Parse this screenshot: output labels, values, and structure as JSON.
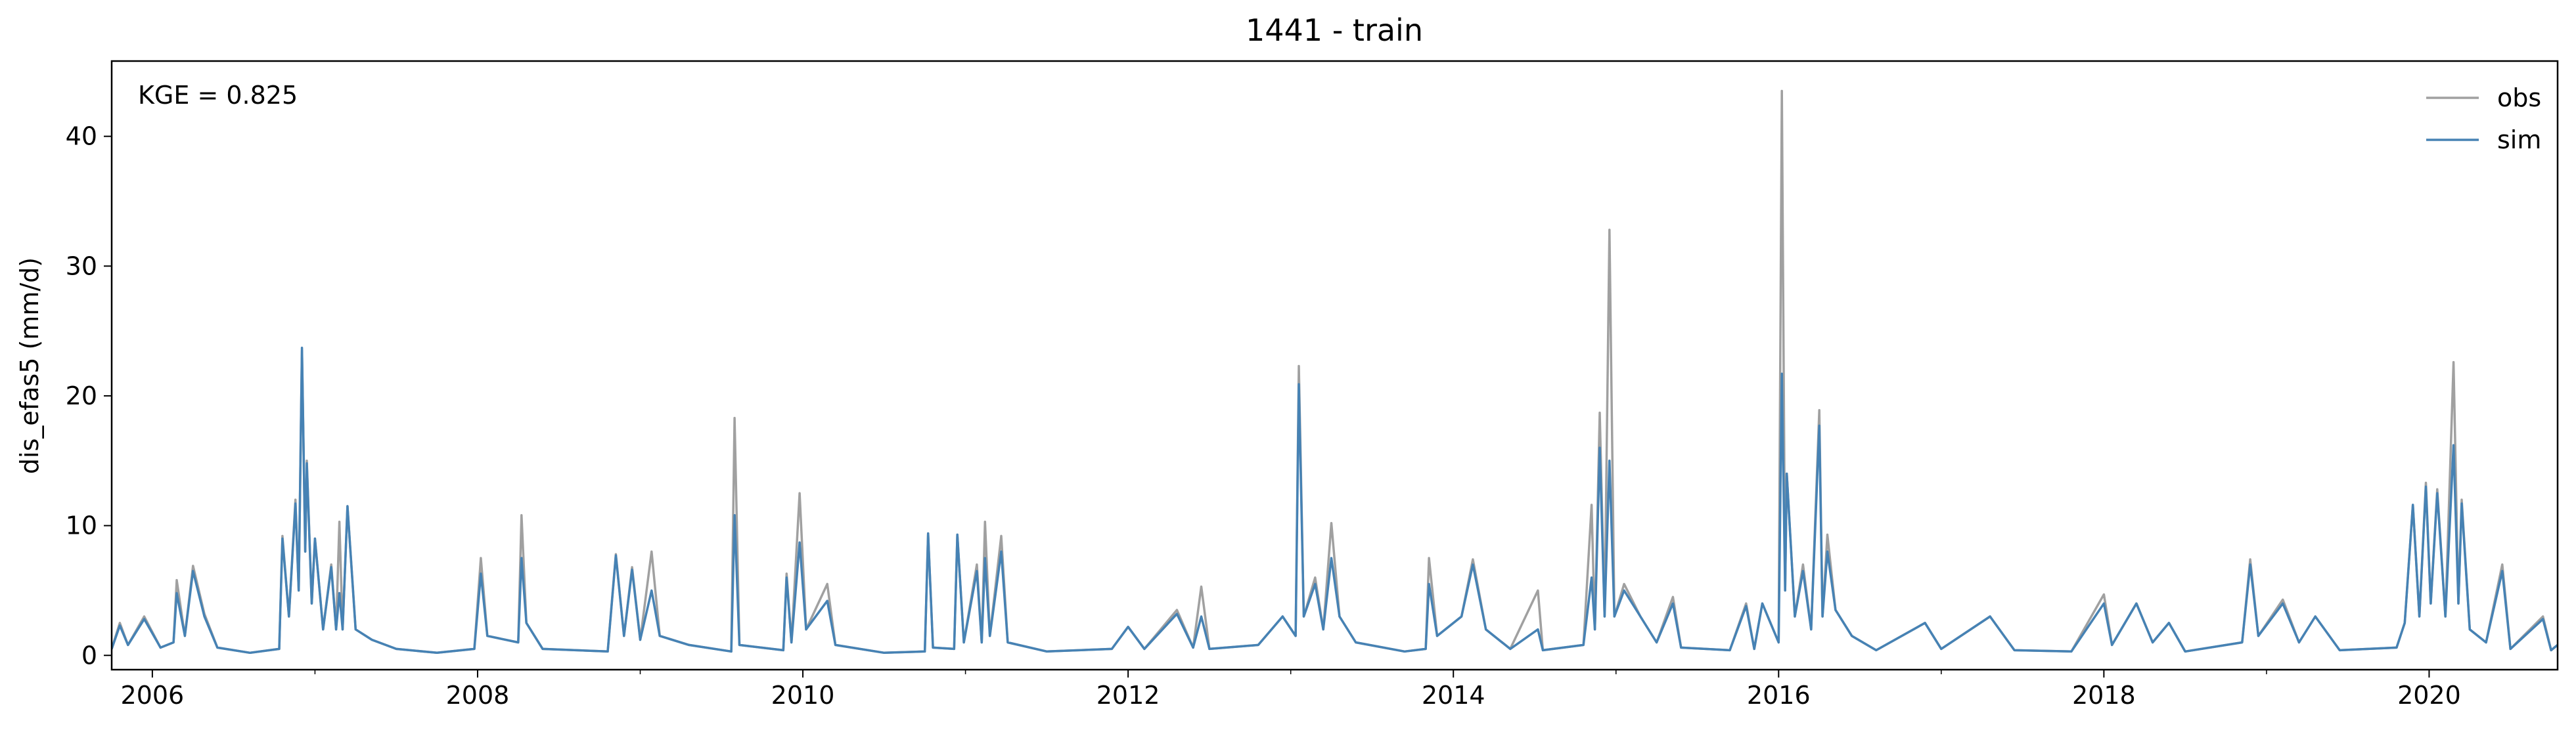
{
  "chart_data": {
    "type": "line",
    "title": "1441 - train",
    "ylabel": "dis_efas5 (mm/d)",
    "annotation": "KGE = 0.825",
    "legend": "upper right",
    "xlim": [
      2005.75,
      2020.79
    ],
    "xticks": [
      2006,
      2008,
      2010,
      2012,
      2014,
      2016,
      2018,
      2020
    ],
    "xminorticks": [
      2007,
      2009,
      2011,
      2013,
      2015,
      2017,
      2019
    ],
    "ylim": [
      -1.1,
      45.8
    ],
    "yticks": [
      0,
      10,
      20,
      30,
      40
    ],
    "x": [
      2005.75,
      2005.8,
      2005.85,
      2005.95,
      2006.05,
      2006.13,
      2006.15,
      2006.2,
      2006.25,
      2006.32,
      2006.4,
      2006.6,
      2006.78,
      2006.8,
      2006.84,
      2006.88,
      2006.9,
      2006.92,
      2006.94,
      2006.95,
      2006.98,
      2007.0,
      2007.05,
      2007.1,
      2007.13,
      2007.15,
      2007.17,
      2007.2,
      2007.25,
      2007.35,
      2007.5,
      2007.75,
      2007.98,
      2008.02,
      2008.06,
      2008.25,
      2008.27,
      2008.3,
      2008.4,
      2008.8,
      2008.85,
      2008.9,
      2008.95,
      2009.0,
      2009.07,
      2009.12,
      2009.3,
      2009.56,
      2009.58,
      2009.61,
      2009.88,
      2009.9,
      2009.93,
      2009.98,
      2010.02,
      2010.15,
      2010.2,
      2010.5,
      2010.75,
      2010.77,
      2010.8,
      2010.93,
      2010.95,
      2010.99,
      2011.07,
      2011.1,
      2011.12,
      2011.15,
      2011.22,
      2011.26,
      2011.5,
      2011.9,
      2012.0,
      2012.1,
      2012.3,
      2012.4,
      2012.45,
      2012.5,
      2012.8,
      2012.95,
      2013.03,
      2013.05,
      2013.08,
      2013.15,
      2013.2,
      2013.25,
      2013.3,
      2013.4,
      2013.7,
      2013.83,
      2013.85,
      2013.9,
      2014.05,
      2014.12,
      2014.2,
      2014.35,
      2014.52,
      2014.55,
      2014.8,
      2014.85,
      2014.87,
      2014.9,
      2014.93,
      2014.96,
      2014.99,
      2015.05,
      2015.15,
      2015.25,
      2015.35,
      2015.4,
      2015.7,
      2015.8,
      2015.85,
      2015.9,
      2016.0,
      2016.02,
      2016.04,
      2016.05,
      2016.1,
      2016.15,
      2016.2,
      2016.25,
      2016.27,
      2016.3,
      2016.35,
      2016.45,
      2016.6,
      2016.9,
      2017.0,
      2017.3,
      2017.45,
      2017.8,
      2018.0,
      2018.05,
      2018.2,
      2018.3,
      2018.4,
      2018.5,
      2018.85,
      2018.9,
      2018.95,
      2019.1,
      2019.2,
      2019.3,
      2019.45,
      2019.8,
      2019.85,
      2019.9,
      2019.94,
      2019.98,
      2020.01,
      2020.05,
      2020.1,
      2020.15,
      2020.18,
      2020.2,
      2020.25,
      2020.35,
      2020.45,
      2020.5,
      2020.7,
      2020.75,
      2020.79
    ],
    "series": [
      {
        "name": "obs",
        "color": "#a0a0a0",
        "values": [
          0.5,
          2.5,
          0.8,
          3.0,
          0.6,
          1.0,
          5.8,
          1.5,
          6.9,
          3.2,
          0.6,
          0.2,
          0.5,
          9.2,
          3,
          12,
          5,
          23.5,
          8,
          15,
          4,
          9,
          2,
          7,
          2,
          10.3,
          2,
          11.5,
          2,
          1.2,
          0.5,
          0.2,
          0.5,
          7.5,
          1.5,
          1.0,
          10.8,
          2.5,
          0.5,
          0.3,
          7.8,
          1.5,
          6.8,
          1.2,
          8,
          1.5,
          0.8,
          0.3,
          18.3,
          0.8,
          0.4,
          6.3,
          1,
          12.5,
          2,
          5.5,
          0.8,
          0.2,
          0.3,
          9.4,
          0.6,
          0.5,
          9.3,
          1,
          7,
          1,
          10.3,
          1.5,
          9.2,
          1,
          0.3,
          0.5,
          2.2,
          0.5,
          3.5,
          0.6,
          5.3,
          0.5,
          0.8,
          3,
          1.5,
          22.3,
          3,
          6,
          2,
          10.2,
          3,
          1,
          0.3,
          0.5,
          7.5,
          1.5,
          3,
          7.4,
          2,
          0.5,
          5,
          0.4,
          0.8,
          11.6,
          2,
          18.7,
          3,
          32.8,
          3,
          5.5,
          3,
          1,
          4.5,
          0.6,
          0.4,
          4,
          0.5,
          4,
          1,
          43.5,
          5,
          14,
          3,
          7,
          2,
          18.9,
          3,
          9.3,
          3.5,
          1.5,
          0.4,
          2.5,
          0.5,
          3,
          0.4,
          0.3,
          4.7,
          0.8,
          4,
          1,
          2.5,
          0.3,
          1,
          7.4,
          1.5,
          4.3,
          1,
          3,
          0.4,
          0.6,
          2.5,
          11.6,
          3,
          13.3,
          4,
          12.8,
          3,
          22.6,
          4,
          12,
          2,
          1,
          7,
          0.5,
          3,
          0.4,
          0.8
        ]
      },
      {
        "name": "sim",
        "color": "#4682b4",
        "values": [
          0.5,
          2.3,
          0.8,
          2.8,
          0.6,
          1.0,
          4.8,
          1.5,
          6.5,
          3.0,
          0.6,
          0.2,
          0.5,
          9.0,
          3,
          11.7,
          5,
          23.7,
          8,
          14.8,
          4,
          9,
          2,
          6.8,
          2,
          4.8,
          2,
          11.5,
          2,
          1.2,
          0.5,
          0.2,
          0.5,
          6.3,
          1.5,
          1.0,
          7.5,
          2.5,
          0.5,
          0.3,
          7.7,
          1.5,
          6.6,
          1.2,
          5,
          1.5,
          0.8,
          0.3,
          10.8,
          0.8,
          0.4,
          6.0,
          1,
          8.7,
          2,
          4.2,
          0.8,
          0.2,
          0.3,
          9.4,
          0.6,
          0.5,
          9.3,
          1,
          6.5,
          1,
          7.5,
          1.5,
          8,
          1,
          0.3,
          0.5,
          2.2,
          0.5,
          3.2,
          0.6,
          3,
          0.5,
          0.8,
          3,
          1.5,
          20.9,
          3,
          5.5,
          2,
          7.5,
          3,
          1,
          0.3,
          0.5,
          5.5,
          1.5,
          3,
          7,
          2,
          0.5,
          2,
          0.4,
          0.8,
          6,
          2,
          16,
          3,
          15,
          3,
          5,
          3,
          1,
          4,
          0.6,
          0.4,
          3.8,
          0.5,
          4,
          1,
          21.7,
          5,
          14,
          3,
          6.5,
          2,
          17.7,
          3,
          8,
          3.5,
          1.5,
          0.4,
          2.5,
          0.5,
          3,
          0.4,
          0.3,
          4,
          0.8,
          4,
          1,
          2.5,
          0.3,
          1,
          7,
          1.5,
          4,
          1,
          3,
          0.4,
          0.6,
          2.5,
          11.6,
          3,
          13,
          4,
          12.5,
          3,
          16.2,
          4,
          11.7,
          2,
          1,
          6.5,
          0.5,
          2.8,
          0.4,
          0.8
        ]
      }
    ]
  }
}
